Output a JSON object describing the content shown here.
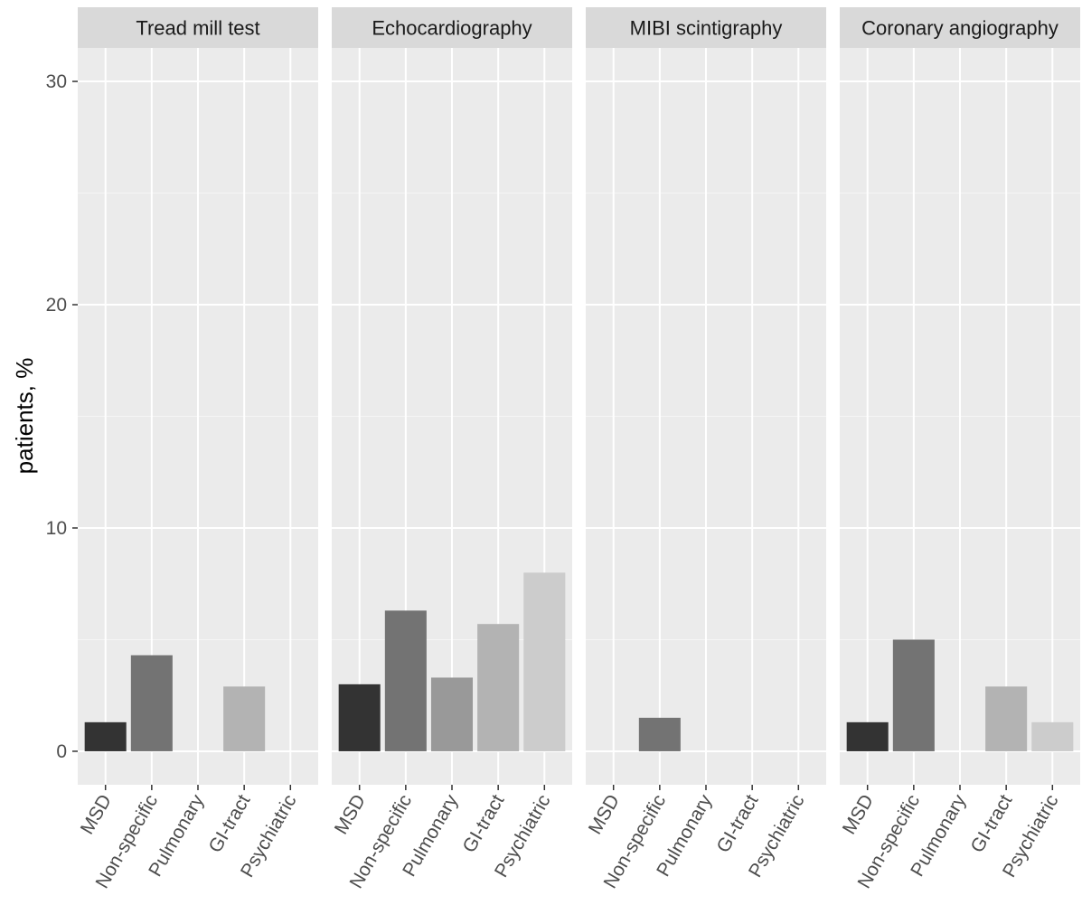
{
  "chart_data": {
    "type": "bar",
    "layout": "faceted",
    "ylabel": "patients, %",
    "xlabel": "",
    "ylim": [
      -1.5,
      31.5
    ],
    "yticks": [
      0,
      10,
      20,
      30
    ],
    "ytick_labels": [
      "0",
      "10",
      "20",
      "30"
    ],
    "grid": true,
    "legend": "none",
    "categories": [
      "MSD",
      "Non-specific",
      "Pulmonary",
      "GI-tract",
      "Psychiatric"
    ],
    "category_colors": [
      "#333333",
      "#737373",
      "#999999",
      "#b3b3b3",
      "#cccccc"
    ],
    "facets": [
      {
        "title": "Tread mill test",
        "values": [
          1.3,
          4.3,
          0,
          2.9,
          0
        ]
      },
      {
        "title": "Echocardiography",
        "values": [
          3.0,
          6.3,
          3.3,
          5.7,
          8.0
        ]
      },
      {
        "title": "MIBI scintigraphy",
        "values": [
          0,
          1.5,
          0,
          0,
          0
        ]
      },
      {
        "title": "Coronary angiography",
        "values": [
          1.3,
          5.0,
          0,
          2.9,
          1.3
        ]
      }
    ]
  },
  "colors": {
    "panel_background": "#ebebeb",
    "strip_background": "#d9d9d9",
    "grid_major": "#ffffff",
    "grid_minor": "#f5f5f5"
  }
}
